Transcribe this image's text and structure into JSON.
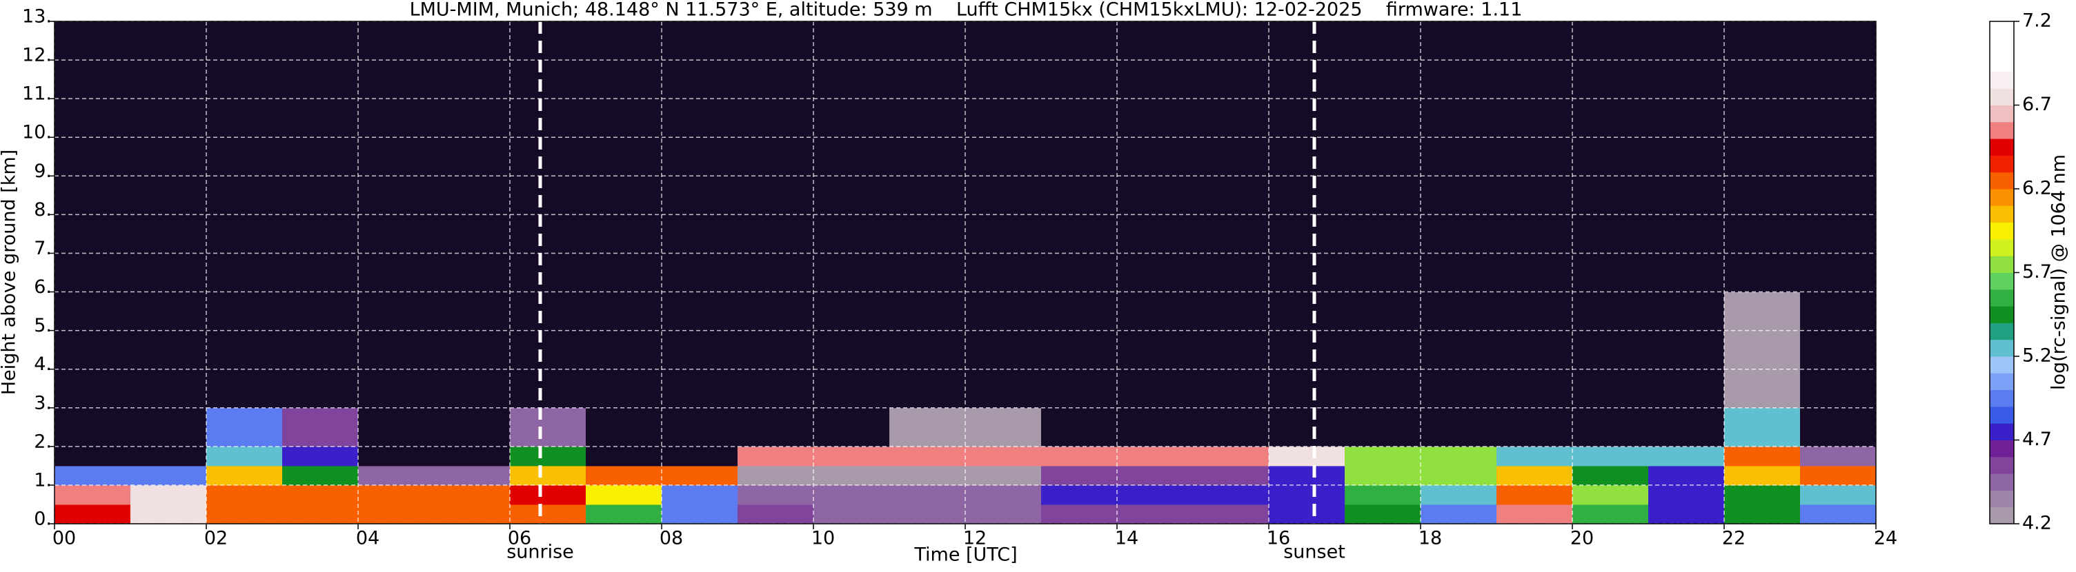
{
  "chart_data": {
    "type": "heatmap",
    "title": "LMU-MIM, Munich; 48.148° N 11.573° E, altitude: 539 m    Lufft CHM15kx (CHM15kxLMU): 12-02-2025    firmware: 1.11",
    "x_label": "Time [UTC]",
    "y_label": "Height above ground [km]",
    "colorbar_label": "log(rc-signal) @ 1064 nm",
    "x_edges": [
      0,
      1,
      2,
      3,
      4,
      5,
      6,
      7,
      8,
      9,
      10,
      11,
      12,
      13,
      14,
      15,
      16,
      17,
      18,
      19,
      20,
      21,
      22,
      23,
      24
    ],
    "y_edges": [
      0,
      0.5,
      1,
      1.5,
      2,
      3,
      6,
      13
    ],
    "z": [
      [
        6.4,
        6.7,
        6.3,
        6.3,
        6.3,
        6.3,
        6.2,
        5.6,
        5.0,
        4.6,
        4.5,
        4.5,
        4.5,
        4.6,
        4.6,
        4.6,
        4.7,
        5.5,
        5.0,
        6.6,
        5.6,
        4.8,
        5.4,
        5.0
      ],
      [
        6.5,
        6.7,
        6.3,
        6.3,
        6.3,
        6.3,
        6.4,
        5.9,
        5.0,
        4.4,
        4.4,
        4.4,
        4.4,
        4.7,
        4.7,
        4.7,
        4.8,
        5.6,
        5.3,
        6.3,
        5.7,
        4.8,
        5.5,
        5.2
      ],
      [
        5.0,
        5.0,
        6.0,
        5.5,
        4.5,
        4.5,
        6.0,
        6.2,
        6.2,
        4.3,
        4.3,
        4.3,
        4.3,
        4.6,
        4.6,
        4.6,
        4.8,
        5.8,
        5.8,
        6.0,
        5.5,
        4.8,
        6.0,
        6.2
      ],
      [
        3.5,
        3.5,
        5.2,
        4.8,
        3.5,
        3.5,
        5.5,
        4.0,
        4.0,
        6.6,
        6.6,
        6.6,
        6.6,
        6.6,
        6.6,
        6.6,
        6.8,
        5.8,
        5.8,
        5.3,
        5.3,
        5.3,
        6.2,
        4.5
      ],
      [
        3.5,
        3.5,
        5.0,
        4.6,
        3.5,
        3.5,
        4.5,
        4.0,
        4.0,
        4.0,
        4.0,
        4.2,
        4.2,
        4.0,
        4.0,
        4.0,
        4.0,
        3.6,
        3.6,
        3.6,
        3.6,
        3.6,
        5.2,
        3.6
      ],
      [
        3.5,
        3.5,
        3.5,
        3.5,
        3.5,
        3.5,
        4.0,
        4.0,
        4.0,
        4.0,
        4.0,
        4.0,
        4.0,
        4.0,
        4.0,
        4.0,
        4.0,
        3.6,
        3.6,
        3.6,
        3.6,
        3.6,
        4.3,
        3.6
      ],
      [
        3.7,
        3.7,
        3.7,
        3.7,
        3.7,
        3.7,
        4.1,
        4.1,
        4.1,
        4.1,
        4.1,
        4.1,
        4.1,
        4.1,
        4.1,
        4.1,
        4.1,
        3.7,
        3.7,
        3.7,
        3.7,
        3.7,
        3.7,
        3.7
      ]
    ],
    "xlim": [
      0,
      24
    ],
    "ylim": [
      0,
      13
    ],
    "xticks": [
      {
        "value": 0,
        "label": "00"
      },
      {
        "value": 2,
        "label": "02"
      },
      {
        "value": 4,
        "label": "04"
      },
      {
        "value": 6,
        "label": "06"
      },
      {
        "value": 8,
        "label": "08"
      },
      {
        "value": 10,
        "label": "10"
      },
      {
        "value": 12,
        "label": "12"
      },
      {
        "value": 14,
        "label": "14"
      },
      {
        "value": 16,
        "label": "16"
      },
      {
        "value": 18,
        "label": "18"
      },
      {
        "value": 20,
        "label": "20"
      },
      {
        "value": 22,
        "label": "22"
      },
      {
        "value": 24,
        "label": "24"
      }
    ],
    "yticks": [
      {
        "value": 0,
        "label": "0."
      },
      {
        "value": 1,
        "label": "1."
      },
      {
        "value": 2,
        "label": "2."
      },
      {
        "value": 3,
        "label": "3."
      },
      {
        "value": 4,
        "label": "4."
      },
      {
        "value": 5,
        "label": "5."
      },
      {
        "value": 6,
        "label": "6."
      },
      {
        "value": 7,
        "label": "7."
      },
      {
        "value": 8,
        "label": "8."
      },
      {
        "value": 9,
        "label": "9."
      },
      {
        "value": 10,
        "label": "10."
      },
      {
        "value": 11,
        "label": "11."
      },
      {
        "value": 12,
        "label": "12."
      },
      {
        "value": 13,
        "label": "13."
      }
    ],
    "clim": [
      4.2,
      7.2
    ],
    "cticks": [
      4.2,
      4.7,
      5.2,
      5.7,
      6.2,
      6.7,
      7.2
    ],
    "colors": [
      "#a89aab",
      "#9d84a8",
      "#8f66a4",
      "#80449d",
      "#6f2094",
      "#3a20c8",
      "#3a5ae8",
      "#5a7cf0",
      "#7ca0f5",
      "#9ec4f8",
      "#60c0d0",
      "#20a080",
      "#109020",
      "#30b040",
      "#60d060",
      "#90e040",
      "#d0f020",
      "#f8f000",
      "#f8c000",
      "#f89000",
      "#f86000",
      "#f02000",
      "#e00000",
      "#f08080",
      "#f0c0c0",
      "#f0e0e0",
      "#f8f0f0",
      "#ffffff",
      "#ffffff",
      "#ffffff"
    ],
    "under_color": "#150b26",
    "grid": true,
    "annotations": [
      {
        "text": "sunrise",
        "x": 6.4
      },
      {
        "text": "sunset",
        "x": 16.6
      }
    ]
  }
}
